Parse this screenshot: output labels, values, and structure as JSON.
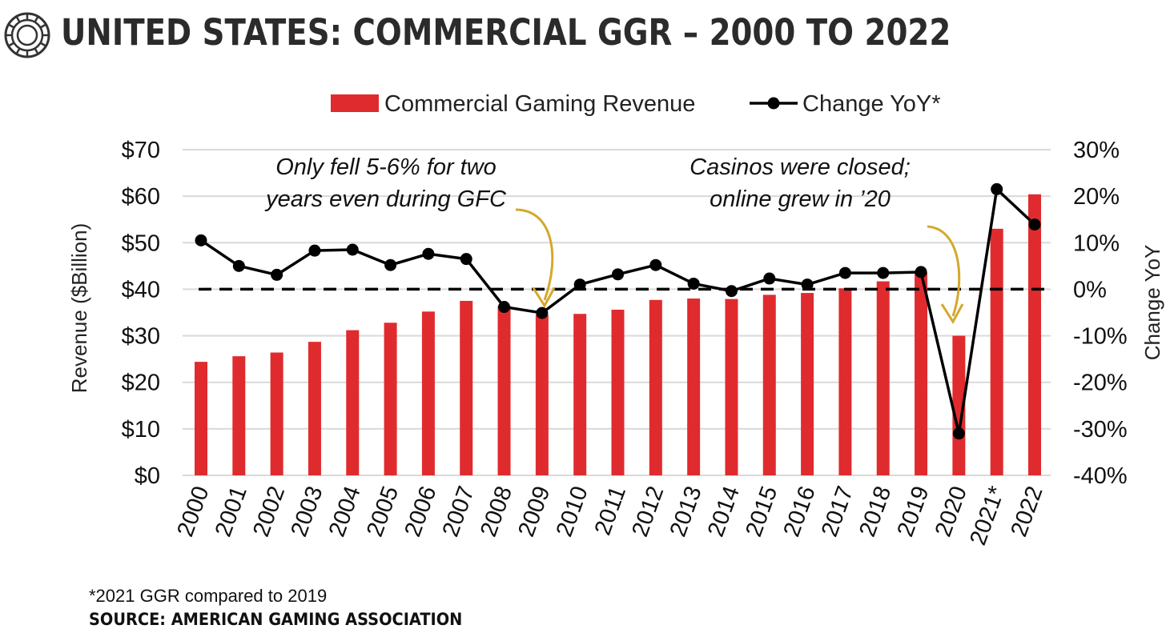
{
  "title": "UNITED STATES: COMMERCIAL GGR – 2000 TO 2022",
  "footnote": "*2021 GGR compared to 2019",
  "source": "SOURCE: AMERICAN GAMING ASSOCIATION",
  "colors": {
    "bar": "#e02b2e",
    "line": "#000000",
    "arrow": "#d4a82a",
    "grid": "#d9d9d9"
  },
  "chart_data": {
    "type": "bar",
    "categories": [
      "2000",
      "2001",
      "2002",
      "2003",
      "2004",
      "2005",
      "2006",
      "2007",
      "2008",
      "2009",
      "2010",
      "2011",
      "2012",
      "2013",
      "2014",
      "2015",
      "2016",
      "2017",
      "2018",
      "2019",
      "2020",
      "2021*",
      "2022"
    ],
    "series": [
      {
        "name": "Commercial Gaming Revenue",
        "type": "bar",
        "axis": "left",
        "values": [
          24.4,
          25.6,
          26.4,
          28.7,
          31.2,
          32.8,
          35.2,
          37.5,
          36.4,
          34.5,
          34.7,
          35.6,
          37.7,
          38.0,
          37.9,
          38.8,
          39.2,
          40.2,
          41.7,
          43.6,
          30.0,
          53.0,
          60.4
        ]
      },
      {
        "name": "Change YoY*",
        "type": "line",
        "axis": "right",
        "values": [
          10.5,
          5.0,
          3.1,
          8.3,
          8.5,
          5.2,
          7.6,
          6.5,
          -3.8,
          -5.1,
          1.0,
          3.2,
          5.2,
          1.2,
          -0.4,
          2.3,
          1.0,
          3.5,
          3.5,
          3.7,
          -31.0,
          21.5,
          13.9
        ]
      }
    ],
    "ylabel": "Revenue ($Billion)",
    "y2label": "Change YoY",
    "ylim": [
      0,
      70
    ],
    "y2lim": [
      -40,
      30
    ],
    "yticks": [
      "$0",
      "$10",
      "$20",
      "$30",
      "$40",
      "$50",
      "$60",
      "$70"
    ],
    "y2ticks": [
      "-40%",
      "-30%",
      "-20%",
      "-10%",
      "0%",
      "10%",
      "20%",
      "30%"
    ],
    "reference_line": {
      "axis": "right",
      "value": 0,
      "style": "dashed"
    },
    "grid": true,
    "legend": "top",
    "annotations": [
      {
        "lines": [
          "Only fell 5-6% for two",
          "years even during GFC"
        ],
        "points_to": "2009"
      },
      {
        "lines": [
          "Casinos were closed;",
          "online grew in ’20"
        ],
        "points_to": "2020"
      }
    ]
  }
}
